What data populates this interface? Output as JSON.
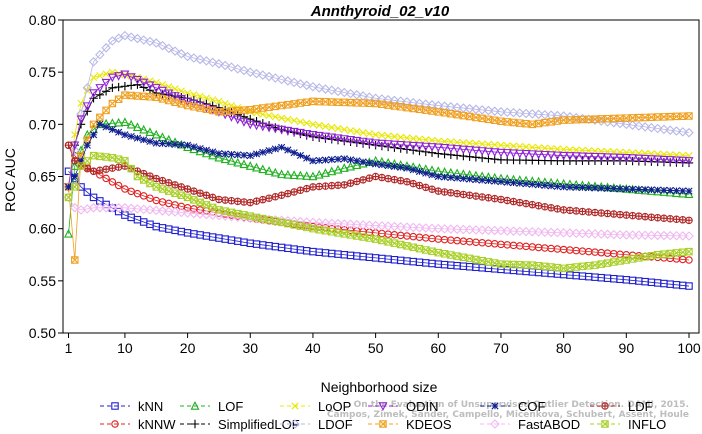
{
  "chart_data": {
    "type": "line",
    "title": "Annthyroid_02_v10",
    "xlabel": "Neighborhood size",
    "ylabel": "ROC AUC",
    "xlim": [
      1,
      100
    ],
    "ylim": [
      0.5,
      0.8
    ],
    "xticks": [
      "1",
      "10",
      "20",
      "30",
      "40",
      "50",
      "60",
      "70",
      "80",
      "90",
      "100"
    ],
    "yticks": [
      "0.50",
      "0.55",
      "0.60",
      "0.65",
      "0.70",
      "0.75",
      "0.80"
    ],
    "grid": false,
    "legend_position": "bottom",
    "credit_lines": [
      "Campos, Zimek, Sander, Campello, Micenkova, Schubert, Assent, Houle",
      "On the Evaluation of Unsupervised Outlier Detection. DAMI, 2015."
    ],
    "series": [
      {
        "name": "kNN",
        "color": "#1f1fd0",
        "marker": "square",
        "points": [
          [
            1,
            0.655
          ],
          [
            2,
            0.648
          ],
          [
            3,
            0.64
          ],
          [
            5,
            0.63
          ],
          [
            10,
            0.613
          ],
          [
            15,
            0.602
          ],
          [
            20,
            0.596
          ],
          [
            30,
            0.586
          ],
          [
            40,
            0.578
          ],
          [
            50,
            0.572
          ],
          [
            60,
            0.566
          ],
          [
            70,
            0.561
          ],
          [
            80,
            0.556
          ],
          [
            90,
            0.551
          ],
          [
            100,
            0.545
          ]
        ]
      },
      {
        "name": "kNNW",
        "color": "#e02020",
        "marker": "circle",
        "points": [
          [
            1,
            0.68
          ],
          [
            2,
            0.67
          ],
          [
            3,
            0.663
          ],
          [
            5,
            0.655
          ],
          [
            10,
            0.638
          ],
          [
            15,
            0.627
          ],
          [
            20,
            0.62
          ],
          [
            30,
            0.61
          ],
          [
            40,
            0.602
          ],
          [
            50,
            0.596
          ],
          [
            60,
            0.59
          ],
          [
            70,
            0.585
          ],
          [
            80,
            0.58
          ],
          [
            90,
            0.575
          ],
          [
            100,
            0.57
          ]
        ]
      },
      {
        "name": "LOF",
        "color": "#20b020",
        "marker": "triangle-up",
        "points": [
          [
            1,
            0.595
          ],
          [
            2,
            0.66
          ],
          [
            4,
            0.69
          ],
          [
            6,
            0.7
          ],
          [
            10,
            0.702
          ],
          [
            15,
            0.69
          ],
          [
            20,
            0.678
          ],
          [
            25,
            0.668
          ],
          [
            30,
            0.66
          ],
          [
            35,
            0.652
          ],
          [
            40,
            0.65
          ],
          [
            45,
            0.658
          ],
          [
            50,
            0.665
          ],
          [
            55,
            0.66
          ],
          [
            60,
            0.655
          ],
          [
            70,
            0.648
          ],
          [
            80,
            0.643
          ],
          [
            90,
            0.638
          ],
          [
            100,
            0.633
          ]
        ]
      },
      {
        "name": "SimplifiedLOF",
        "color": "#000000",
        "marker": "plus",
        "points": [
          [
            1,
            0.64
          ],
          [
            2,
            0.68
          ],
          [
            3,
            0.7
          ],
          [
            5,
            0.725
          ],
          [
            8,
            0.735
          ],
          [
            12,
            0.738
          ],
          [
            15,
            0.73
          ],
          [
            20,
            0.725
          ],
          [
            25,
            0.716
          ],
          [
            30,
            0.705
          ],
          [
            35,
            0.695
          ],
          [
            40,
            0.688
          ],
          [
            50,
            0.68
          ],
          [
            60,
            0.672
          ],
          [
            70,
            0.666
          ],
          [
            80,
            0.665
          ],
          [
            90,
            0.665
          ],
          [
            100,
            0.663
          ]
        ]
      },
      {
        "name": "LoOP",
        "color": "#e8e800",
        "marker": "cross",
        "points": [
          [
            1,
            0.64
          ],
          [
            2,
            0.69
          ],
          [
            3,
            0.72
          ],
          [
            5,
            0.745
          ],
          [
            8,
            0.75
          ],
          [
            12,
            0.745
          ],
          [
            15,
            0.74
          ],
          [
            20,
            0.73
          ],
          [
            25,
            0.722
          ],
          [
            30,
            0.712
          ],
          [
            40,
            0.7
          ],
          [
            50,
            0.69
          ],
          [
            60,
            0.684
          ],
          [
            70,
            0.68
          ],
          [
            80,
            0.676
          ],
          [
            90,
            0.673
          ],
          [
            100,
            0.67
          ]
        ]
      },
      {
        "name": "LDOF",
        "color": "#b8b8e8",
        "marker": "diamond",
        "points": [
          [
            1,
            0.64
          ],
          [
            3,
            0.71
          ],
          [
            5,
            0.76
          ],
          [
            8,
            0.78
          ],
          [
            10,
            0.785
          ],
          [
            15,
            0.778
          ],
          [
            20,
            0.765
          ],
          [
            25,
            0.758
          ],
          [
            30,
            0.75
          ],
          [
            40,
            0.736
          ],
          [
            50,
            0.725
          ],
          [
            60,
            0.718
          ],
          [
            70,
            0.712
          ],
          [
            80,
            0.708
          ],
          [
            90,
            0.7
          ],
          [
            100,
            0.692
          ]
        ]
      },
      {
        "name": "ODIN",
        "color": "#9020d8",
        "marker": "triangle-down",
        "points": [
          [
            1,
            0.64
          ],
          [
            2,
            0.68
          ],
          [
            3,
            0.705
          ],
          [
            5,
            0.73
          ],
          [
            8,
            0.745
          ],
          [
            10,
            0.748
          ],
          [
            15,
            0.735
          ],
          [
            20,
            0.722
          ],
          [
            25,
            0.712
          ],
          [
            30,
            0.7
          ],
          [
            40,
            0.69
          ],
          [
            50,
            0.682
          ],
          [
            60,
            0.678
          ],
          [
            70,
            0.673
          ],
          [
            80,
            0.67
          ],
          [
            90,
            0.668
          ],
          [
            100,
            0.665
          ]
        ]
      },
      {
        "name": "KDEOS",
        "color": "#f0a020",
        "marker": "square-x",
        "points": [
          [
            1,
            0.64
          ],
          [
            2,
            0.57
          ],
          [
            3,
            0.67
          ],
          [
            5,
            0.7
          ],
          [
            8,
            0.72
          ],
          [
            10,
            0.728
          ],
          [
            15,
            0.726
          ],
          [
            20,
            0.718
          ],
          [
            25,
            0.712
          ],
          [
            30,
            0.714
          ],
          [
            35,
            0.718
          ],
          [
            40,
            0.722
          ],
          [
            50,
            0.72
          ],
          [
            60,
            0.712
          ],
          [
            70,
            0.703
          ],
          [
            75,
            0.7
          ],
          [
            80,
            0.704
          ],
          [
            90,
            0.706
          ],
          [
            100,
            0.708
          ]
        ]
      },
      {
        "name": "COF",
        "color": "#102090",
        "marker": "star",
        "points": [
          [
            1,
            0.64
          ],
          [
            2,
            0.65
          ],
          [
            4,
            0.68
          ],
          [
            6,
            0.7
          ],
          [
            10,
            0.69
          ],
          [
            15,
            0.682
          ],
          [
            20,
            0.68
          ],
          [
            25,
            0.672
          ],
          [
            30,
            0.67
          ],
          [
            35,
            0.678
          ],
          [
            40,
            0.665
          ],
          [
            45,
            0.667
          ],
          [
            50,
            0.662
          ],
          [
            55,
            0.658
          ],
          [
            60,
            0.65
          ],
          [
            70,
            0.645
          ],
          [
            80,
            0.64
          ],
          [
            90,
            0.638
          ],
          [
            100,
            0.636
          ]
        ]
      },
      {
        "name": "FastABOD",
        "color": "#f0b8f0",
        "marker": "diamond",
        "points": [
          [
            1,
            0.63
          ],
          [
            2,
            0.62
          ],
          [
            3,
            0.618
          ],
          [
            5,
            0.62
          ],
          [
            10,
            0.62
          ],
          [
            20,
            0.615
          ],
          [
            30,
            0.61
          ],
          [
            40,
            0.606
          ],
          [
            50,
            0.603
          ],
          [
            60,
            0.6
          ],
          [
            70,
            0.598
          ],
          [
            80,
            0.596
          ],
          [
            90,
            0.594
          ],
          [
            100,
            0.593
          ]
        ]
      },
      {
        "name": "LDF",
        "color": "#b02828",
        "marker": "circle-plus",
        "points": [
          [
            1,
            0.68
          ],
          [
            2,
            0.665
          ],
          [
            3,
            0.66
          ],
          [
            5,
            0.655
          ],
          [
            8,
            0.658
          ],
          [
            10,
            0.66
          ],
          [
            15,
            0.648
          ],
          [
            20,
            0.638
          ],
          [
            25,
            0.628
          ],
          [
            30,
            0.625
          ],
          [
            35,
            0.632
          ],
          [
            40,
            0.64
          ],
          [
            45,
            0.642
          ],
          [
            50,
            0.65
          ],
          [
            55,
            0.645
          ],
          [
            60,
            0.636
          ],
          [
            70,
            0.628
          ],
          [
            80,
            0.618
          ],
          [
            90,
            0.613
          ],
          [
            100,
            0.608
          ]
        ]
      },
      {
        "name": "INFLO",
        "color": "#a8d028",
        "marker": "square-x",
        "points": [
          [
            1,
            0.63
          ],
          [
            2,
            0.64
          ],
          [
            3,
            0.66
          ],
          [
            5,
            0.67
          ],
          [
            8,
            0.668
          ],
          [
            10,
            0.665
          ],
          [
            12,
            0.65
          ],
          [
            15,
            0.64
          ],
          [
            20,
            0.63
          ],
          [
            25,
            0.618
          ],
          [
            30,
            0.612
          ],
          [
            40,
            0.6
          ],
          [
            50,
            0.59
          ],
          [
            60,
            0.577
          ],
          [
            70,
            0.566
          ],
          [
            75,
            0.565
          ],
          [
            80,
            0.562
          ],
          [
            85,
            0.565
          ],
          [
            90,
            0.57
          ],
          [
            95,
            0.575
          ],
          [
            100,
            0.578
          ]
        ]
      }
    ]
  }
}
